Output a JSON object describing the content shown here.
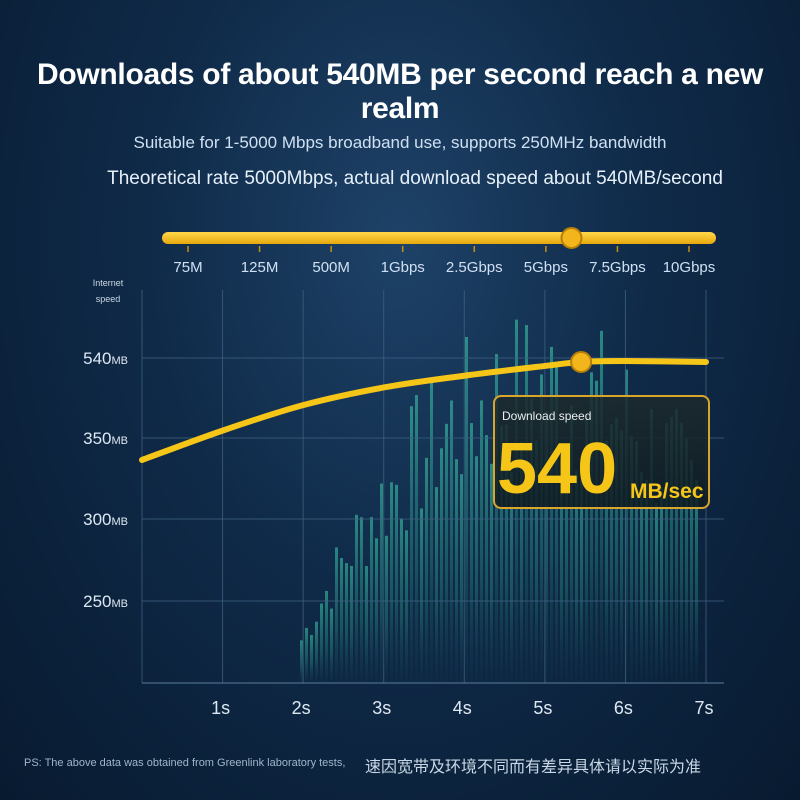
{
  "header": {
    "title": "Downloads of about 540MB per second reach a new realm",
    "subtitle_1": "Suitable for 1-5000 Mbps broadband use, supports 250MHz bandwidth",
    "subtitle_2": "Theoretical rate 5000Mbps, actual download speed about 540MB/second"
  },
  "rate_scale": {
    "labels": [
      "75M",
      "125M",
      "500M",
      "1Gbps",
      "2.5Gbps",
      "5Gbps",
      "7.5Gbps",
      "10Gbps"
    ],
    "marker_fraction": 0.75
  },
  "callout": {
    "label": "Download speed",
    "value": "540",
    "unit": "MB/sec"
  },
  "chart_data": {
    "type": "line",
    "ylabel": "Internet speed",
    "y_ticks": [
      {
        "value": "540",
        "unit": "MB"
      },
      {
        "value": "350",
        "unit": "MB"
      },
      {
        "value": "300",
        "unit": "MB"
      },
      {
        "value": "250",
        "unit": "MB"
      }
    ],
    "x_ticks": [
      "1s",
      "2s",
      "3s",
      "4s",
      "5s",
      "6s",
      "7s"
    ],
    "series": [
      {
        "x": [
          0,
          1,
          2,
          3,
          4,
          5,
          5.45,
          6,
          7
        ],
        "y": [
          0.0,
          0.3,
          0.56,
          0.74,
          0.86,
          0.96,
          1.0,
          1.01,
          1.0
        ],
        "marker_at_x": 5.45,
        "color": "#f5c518"
      }
    ]
  },
  "footer": {
    "note": "PS: The above data was obtained from Greenlink laboratory tests,",
    "note_cn": "速因宽带及环境不同而有差异具体请以实际为准"
  },
  "colors": {
    "accent": "#f5c518",
    "background": "#0f2a48",
    "grid": "#3d5f80",
    "callout_value": "#f5c518"
  }
}
